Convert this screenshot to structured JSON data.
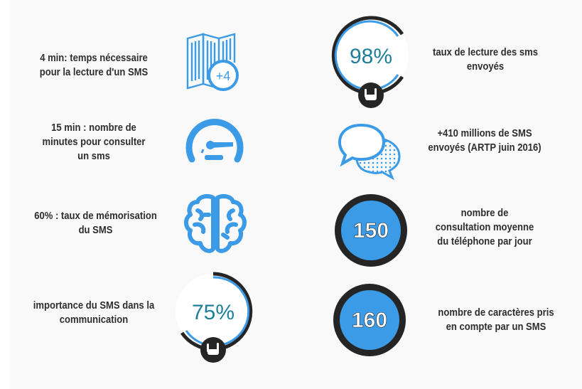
{
  "colors": {
    "accent_blue": "#3b9be6",
    "ring_dark": "#252525",
    "teal_text": "#1f7f99",
    "text": "#2e2e2e",
    "background": "#f9f9f9"
  },
  "left": [
    {
      "lines": [
        "4 min: temps nécessaire",
        "pour la lecture d'un SMS"
      ],
      "icon": "calendar-plus-four-icon",
      "badge": "+4"
    },
    {
      "lines": [
        "15 min : nombre de",
        "minutes pour consulter",
        "un sms"
      ],
      "icon": "speedometer-icon"
    },
    {
      "lines": [
        "60% : taux de mémorisation",
        "du SMS"
      ],
      "icon": "brain-icon"
    },
    {
      "lines": [
        "importance du SMS dans la",
        "communication"
      ],
      "icon": "percent-ring-icon",
      "value": "75%"
    }
  ],
  "right": [
    {
      "lines": [
        "taux de lecture des sms",
        "envoyés"
      ],
      "icon": "percent-ring-icon",
      "value": "98%"
    },
    {
      "lines": [
        "+410 millions de SMS",
        "envoyés (ARTP juin 2016)"
      ],
      "icon": "speech-bubbles-icon"
    },
    {
      "lines": [
        "nombre de",
        "consultation moyenne",
        "du téléphone par jour"
      ],
      "icon": "number-disc-icon",
      "value": "150"
    },
    {
      "lines": [
        "nombre de caractères pris",
        "en compte par un SMS"
      ],
      "icon": "number-disc-icon",
      "value": "160"
    }
  ]
}
